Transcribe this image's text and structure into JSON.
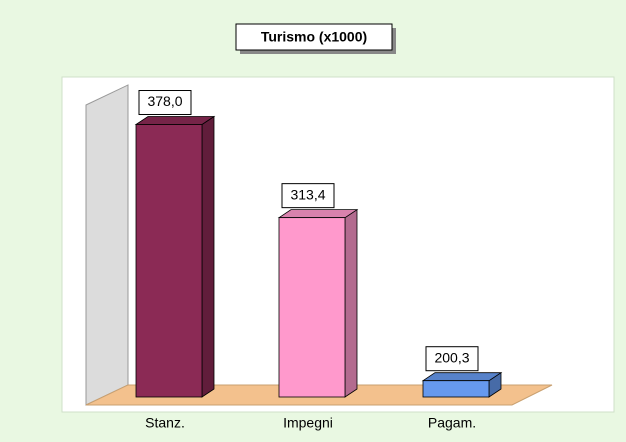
{
  "chart_data": {
    "type": "bar3d",
    "title": "Turismo (x1000)",
    "categories": [
      "Stanz.",
      "Impegni",
      "Pagam."
    ],
    "values": [
      378.0,
      313.4,
      200.3
    ],
    "value_labels": [
      "378,0",
      "313,4",
      "200,3"
    ],
    "colors": [
      "#8b2a55",
      "#ff99cc",
      "#6699ee"
    ],
    "ylim": [
      189,
      395
    ]
  }
}
